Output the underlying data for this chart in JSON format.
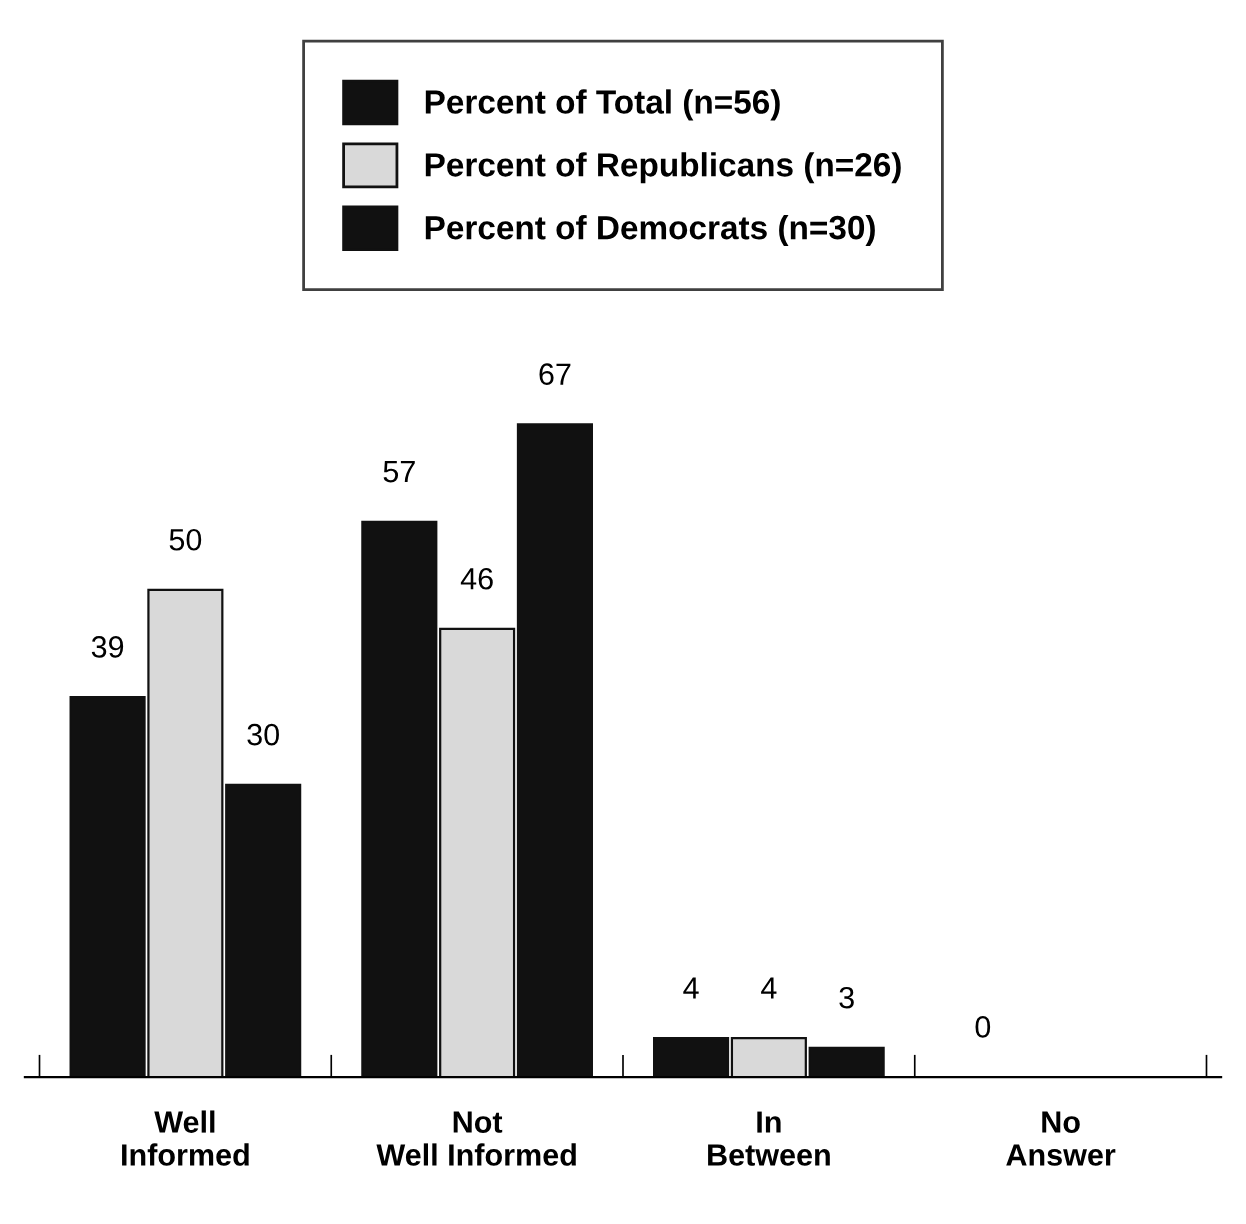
{
  "chart_data": {
    "type": "bar",
    "categories": [
      "Well\nInformed",
      "Not\nWell Informed",
      "In\nBetween",
      "No\nAnswer"
    ],
    "series": [
      {
        "name": "Percent of Total (n=56)",
        "color": "#111111",
        "values": [
          39,
          57,
          4,
          0
        ]
      },
      {
        "name": "Percent of Republicans (n=26)",
        "color": "#d9d9d9",
        "values": [
          50,
          46,
          4,
          null
        ]
      },
      {
        "name": "Percent of Democrats (n=30)",
        "color": "#111111",
        "values": [
          30,
          67,
          3,
          null
        ]
      }
    ],
    "data_labels": true,
    "legend": "top",
    "grid": false
  }
}
